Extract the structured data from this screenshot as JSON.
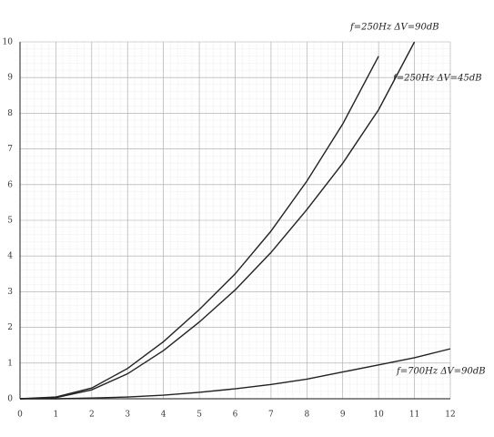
{
  "chart_data": {
    "type": "line",
    "x": [
      0,
      1,
      2,
      3,
      4,
      5,
      6,
      7,
      8,
      9,
      10,
      11,
      12
    ],
    "series": [
      {
        "name": "f=250Hz ΔV=90dB",
        "color": "#222222",
        "values": [
          0,
          0.05,
          0.3,
          0.85,
          1.6,
          2.5,
          3.5,
          4.7,
          6.1,
          7.7,
          9.6,
          null,
          null
        ]
      },
      {
        "name": "f=250Hz ΔV=45dB",
        "color": "#222222",
        "values": [
          0,
          0.03,
          0.25,
          0.7,
          1.35,
          2.15,
          3.05,
          4.1,
          5.3,
          6.6,
          8.1,
          10,
          null
        ]
      },
      {
        "name": "f=700Hz ΔV=90dB",
        "color": "#222222",
        "values": [
          0,
          0,
          0.02,
          0.05,
          0.1,
          0.18,
          0.28,
          0.4,
          0.55,
          0.75,
          0.95,
          1.15,
          1.4
        ]
      }
    ],
    "xlim": [
      0,
      12
    ],
    "ylim": [
      0,
      10
    ],
    "xticks": [
      0,
      1,
      2,
      3,
      4,
      5,
      6,
      7,
      8,
      9,
      10,
      11,
      12
    ],
    "yticks": [
      0,
      1,
      2,
      3,
      4,
      5,
      6,
      7,
      8,
      9,
      10
    ],
    "grid": true
  }
}
